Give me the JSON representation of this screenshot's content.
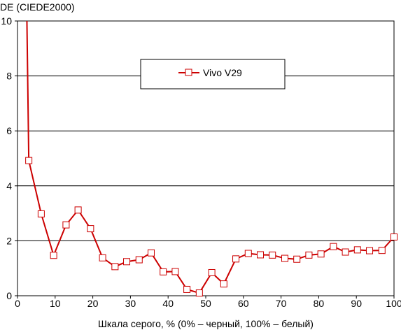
{
  "chart_data": {
    "type": "line",
    "title": "",
    "ylabel": "DE (CIEDE2000)",
    "xlabel": "Шкала серого, % (0% – черный, 100% – белый)",
    "xlim": [
      0,
      100
    ],
    "ylim": [
      0,
      10
    ],
    "x_ticks": [
      0,
      10,
      20,
      30,
      40,
      50,
      60,
      70,
      80,
      90,
      100
    ],
    "y_ticks": [
      0,
      2,
      4,
      6,
      8,
      10
    ],
    "grid": "horizontal",
    "legend_position": "top-center",
    "series": [
      {
        "name": "Vivo V29",
        "color": "#cc0000",
        "marker": "square-open",
        "line_only_x": [
          0,
          2.5
        ],
        "line_only_y": [
          12.0,
          10.0
        ],
        "x": [
          2.5,
          3.0,
          6.3,
          9.6,
          12.9,
          16.1,
          19.4,
          22.6,
          25.9,
          29.0,
          32.3,
          35.5,
          38.7,
          41.9,
          45.0,
          48.3,
          51.6,
          54.8,
          58.0,
          61.3,
          64.5,
          67.7,
          71.0,
          74.2,
          77.4,
          80.6,
          83.9,
          87.1,
          90.3,
          93.5,
          96.8,
          100.0
        ],
        "y": [
          10.0,
          4.92,
          2.98,
          1.47,
          2.58,
          3.12,
          2.44,
          1.38,
          1.06,
          1.24,
          1.31,
          1.56,
          0.87,
          0.88,
          0.23,
          0.1,
          0.84,
          0.43,
          1.34,
          1.54,
          1.49,
          1.48,
          1.36,
          1.33,
          1.48,
          1.52,
          1.79,
          1.59,
          1.67,
          1.64,
          1.65,
          2.14
        ],
        "marker_mask": [
          0,
          1,
          1,
          1,
          1,
          1,
          1,
          1,
          1,
          1,
          1,
          1,
          1,
          1,
          1,
          1,
          1,
          1,
          1,
          1,
          1,
          1,
          1,
          1,
          1,
          1,
          1,
          1,
          1,
          1,
          1,
          1
        ]
      }
    ]
  }
}
